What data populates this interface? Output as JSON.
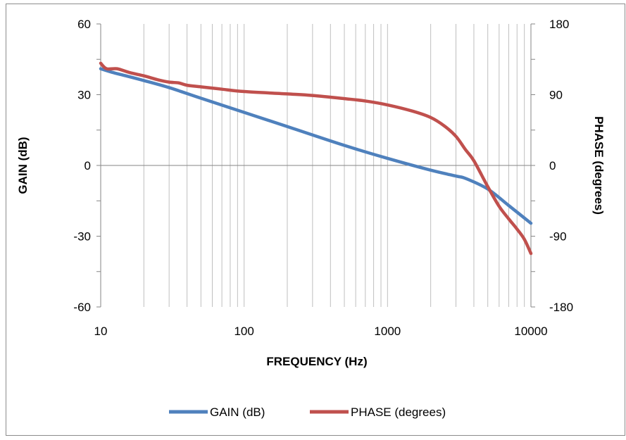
{
  "chart_data": {
    "type": "line",
    "xlabel": "FREQUENCY (Hz)",
    "ylabel_left": "GAIN (dB)",
    "ylabel_right": "PHASE (degrees)",
    "x_scale": "log",
    "xlim": [
      10,
      10000
    ],
    "ylim_left": [
      -60,
      60
    ],
    "ylim_right": [
      -180,
      180
    ],
    "x_ticks": [
      10,
      100,
      1000,
      10000
    ],
    "x_tick_labels": [
      "10",
      "100",
      "1000",
      "10000"
    ],
    "y_left_ticks": [
      60,
      30,
      0,
      -30,
      -60
    ],
    "y_left_tick_labels": [
      "60",
      "30",
      "0",
      "-30",
      "-60"
    ],
    "y_right_ticks": [
      180,
      90,
      0,
      -90,
      -180
    ],
    "y_right_tick_labels": [
      "180",
      "90",
      "0",
      "-90",
      "-180"
    ],
    "grid": {
      "vertical_log_minor": true,
      "horizontal": false
    },
    "legend": {
      "placement": "bottom"
    },
    "series": [
      {
        "name": "GAIN (dB)",
        "axis": "left",
        "color": "#4f81bd",
        "x": [
          10,
          12,
          15,
          20,
          30,
          50,
          100,
          200,
          500,
          1000,
          2000,
          3000,
          3500,
          5000,
          7000,
          10000
        ],
        "y": [
          41,
          39.5,
          38,
          36,
          33,
          28.5,
          22.5,
          16.5,
          8.5,
          3,
          -2,
          -4.5,
          -5.5,
          -10,
          -17,
          -24.5
        ]
      },
      {
        "name": "PHASE (degrees)",
        "axis": "right",
        "color": "#c0504d",
        "x": [
          10,
          11,
          13,
          16,
          20,
          25,
          30,
          35,
          40,
          50,
          70,
          100,
          200,
          300,
          500,
          700,
          1000,
          1500,
          2000,
          2500,
          3000,
          3500,
          4000,
          5000,
          6000,
          7000,
          8000,
          9000,
          10000
        ],
        "y": [
          130,
          123,
          123,
          118,
          114,
          109,
          106,
          105,
          102,
          100,
          97,
          94,
          91,
          89,
          85,
          82,
          77,
          69,
          61,
          50,
          37,
          20,
          6,
          -27,
          -52,
          -68,
          -81,
          -94,
          -112
        ]
      }
    ]
  }
}
